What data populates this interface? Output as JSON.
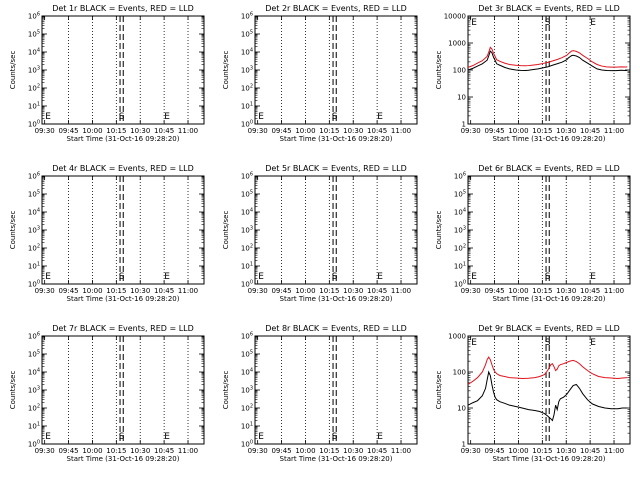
{
  "chart_data": [
    {
      "type": "line",
      "title": "Det 1r BLACK = Events, RED = LLD",
      "xlabel": "Start Time (31-Oct-16 09:28:20)",
      "ylabel": "Counts/sec",
      "xticks": [
        "09:30",
        "09:45",
        "10:00",
        "10:15",
        "10:30",
        "10:45",
        "11:00"
      ],
      "yscale": "log",
      "ylim": [
        1,
        1000000
      ],
      "yticks": [
        "10^0",
        "10^1",
        "10^2",
        "10^3",
        "10^4",
        "10^5",
        "10^6"
      ],
      "markers": {
        "E_left": "E",
        "S": "S",
        "E_right": "E"
      },
      "series": []
    },
    {
      "type": "line",
      "title": "Det 2r BLACK = Events, RED = LLD",
      "xlabel": "Start Time (31-Oct-16 09:28:20)",
      "ylabel": "Counts/sec",
      "xticks": [
        "09:30",
        "09:45",
        "10:00",
        "10:15",
        "10:30",
        "10:45",
        "11:00"
      ],
      "yscale": "log",
      "ylim": [
        1,
        1000000
      ],
      "yticks": [
        "10^0",
        "10^1",
        "10^2",
        "10^3",
        "10^4",
        "10^5",
        "10^6"
      ],
      "markers": {
        "E_left": "E",
        "S": "S",
        "E_right": "E"
      },
      "series": []
    },
    {
      "type": "line",
      "title": "Det 3r BLACK = Events, RED = LLD",
      "xlabel": "Start Time (31-Oct-16 09:28:20)",
      "ylabel": "Counts/sec",
      "xticks": [
        "09:30",
        "09:45",
        "10:00",
        "10:15",
        "10:30",
        "10:45",
        "11:00"
      ],
      "yscale": "log",
      "ylim": [
        1,
        10000
      ],
      "yticks": [
        "1",
        "10",
        "100",
        "1000",
        "10000"
      ],
      "markers": {
        "E_left": "E",
        "S": "S",
        "E_right": "E"
      },
      "series": [
        {
          "color": "#000000",
          "x": [
            0,
            3,
            6,
            9,
            12,
            13,
            14,
            15,
            16,
            17,
            18,
            20,
            23,
            26,
            30,
            33,
            36,
            38,
            40,
            44,
            47,
            50,
            53,
            56,
            59,
            62,
            63,
            64,
            65,
            66,
            68,
            70,
            72,
            75,
            78,
            81,
            84,
            87,
            90,
            93,
            96,
            99,
            100
          ],
          "y": [
            100,
            115,
            140,
            170,
            230,
            330,
            500,
            440,
            300,
            230,
            170,
            150,
            125,
            110,
            100,
            97,
            96,
            98,
            102,
            110,
            120,
            130,
            150,
            170,
            195,
            240,
            280,
            310,
            340,
            350,
            330,
            290,
            230,
            180,
            140,
            110,
            100,
            96,
            95,
            95,
            98,
            96,
            97
          ]
        },
        {
          "color": "#e0141e",
          "x": [
            0,
            3,
            6,
            9,
            12,
            13,
            14,
            15,
            16,
            17,
            18,
            20,
            23,
            26,
            30,
            33,
            36,
            38,
            40,
            44,
            47,
            50,
            53,
            56,
            59,
            62,
            63,
            64,
            65,
            66,
            68,
            70,
            72,
            75,
            78,
            81,
            84,
            87,
            90,
            93,
            96,
            99,
            100
          ],
          "y": [
            125,
            145,
            180,
            220,
            320,
            450,
            690,
            600,
            420,
            320,
            240,
            210,
            180,
            160,
            150,
            145,
            144,
            146,
            150,
            160,
            175,
            190,
            215,
            245,
            285,
            350,
            400,
            450,
            500,
            520,
            490,
            430,
            350,
            270,
            200,
            160,
            140,
            130,
            128,
            128,
            130,
            129,
            130
          ]
        }
      ]
    },
    {
      "type": "line",
      "title": "Det 4r BLACK = Events, RED = LLD",
      "xlabel": "Start Time (31-Oct-16 09:28:20)",
      "ylabel": "Counts/sec",
      "xticks": [
        "09:30",
        "09:45",
        "10:00",
        "10:15",
        "10:30",
        "10:45",
        "11:00"
      ],
      "yscale": "log",
      "ylim": [
        1,
        1000000
      ],
      "yticks": [
        "10^0",
        "10^1",
        "10^2",
        "10^3",
        "10^4",
        "10^5",
        "10^6"
      ],
      "markers": {
        "E_left": "E",
        "S": "S",
        "E_right": "E"
      },
      "series": []
    },
    {
      "type": "line",
      "title": "Det 5r BLACK = Events, RED = LLD",
      "xlabel": "Start Time (31-Oct-16 09:28:20)",
      "ylabel": "Counts/sec",
      "xticks": [
        "09:30",
        "09:45",
        "10:00",
        "10:15",
        "10:30",
        "10:45",
        "11:00"
      ],
      "yscale": "log",
      "ylim": [
        1,
        1000000
      ],
      "yticks": [
        "10^0",
        "10^1",
        "10^2",
        "10^3",
        "10^4",
        "10^5",
        "10^6"
      ],
      "markers": {
        "E_left": "E",
        "S": "S",
        "E_right": "E"
      },
      "series": []
    },
    {
      "type": "line",
      "title": "Det 6r BLACK = Events, RED = LLD",
      "xlabel": "Start Time (31-Oct-16 09:28:20)",
      "ylabel": "Counts/sec",
      "xticks": [
        "09:30",
        "09:45",
        "10:00",
        "10:15",
        "10:30",
        "10:45",
        "11:00"
      ],
      "yscale": "log",
      "ylim": [
        1,
        1000000
      ],
      "yticks": [
        "10^0",
        "10^1",
        "10^2",
        "10^3",
        "10^4",
        "10^5",
        "10^6"
      ],
      "markers": {
        "E_left": "E",
        "S": "S",
        "E_right": "E"
      },
      "series": []
    },
    {
      "type": "line",
      "title": "Det 7r BLACK = Events, RED = LLD",
      "xlabel": "Start Time (31-Oct-16 09:28:20)",
      "ylabel": "Counts/sec",
      "xticks": [
        "09:30",
        "09:45",
        "10:00",
        "10:15",
        "10:30",
        "10:45",
        "11:00"
      ],
      "yscale": "log",
      "ylim": [
        1,
        1000000
      ],
      "yticks": [
        "10^0",
        "10^1",
        "10^2",
        "10^3",
        "10^4",
        "10^5",
        "10^6"
      ],
      "markers": {
        "E_left": "E",
        "S": "S",
        "E_right": "E"
      },
      "series": []
    },
    {
      "type": "line",
      "title": "Det 8r BLACK = Events, RED = LLD",
      "xlabel": "Start Time (31-Oct-16 09:28:20)",
      "ylabel": "Counts/sec",
      "xticks": [
        "09:30",
        "09:45",
        "10:00",
        "10:15",
        "10:30",
        "10:45",
        "11:00"
      ],
      "yscale": "log",
      "ylim": [
        1,
        1000000
      ],
      "yticks": [
        "10^0",
        "10^1",
        "10^2",
        "10^3",
        "10^4",
        "10^5",
        "10^6"
      ],
      "markers": {
        "E_left": "E",
        "S": "S",
        "E_right": "E"
      },
      "series": []
    },
    {
      "type": "line",
      "title": "Det 9r BLACK = Events, RED = LLD",
      "xlabel": "Start Time (31-Oct-16 09:28:20)",
      "ylabel": "Counts/sec",
      "xticks": [
        "09:30",
        "09:45",
        "10:00",
        "10:15",
        "10:30",
        "10:45",
        "11:00"
      ],
      "yscale": "log",
      "ylim": [
        1,
        1000
      ],
      "yticks": [
        "1",
        "10",
        "100",
        "1000"
      ],
      "markers": {
        "E_left": "E",
        "S": "S",
        "E_right": "E"
      },
      "series": [
        {
          "color": "#000000",
          "x": [
            0,
            3,
            6,
            9,
            11,
            12,
            13,
            14,
            15,
            16,
            17,
            18,
            20,
            23,
            26,
            30,
            34,
            38,
            42,
            45,
            48,
            50,
            52,
            53,
            54,
            55,
            56,
            57,
            58,
            60,
            62,
            64,
            66,
            68,
            70,
            72,
            75,
            78,
            82,
            86,
            90,
            94,
            97,
            100
          ],
          "y": [
            12,
            14,
            16,
            22,
            35,
            60,
            100,
            80,
            45,
            28,
            20,
            17,
            15,
            13.5,
            12,
            11,
            10,
            9,
            8.5,
            8,
            7,
            6,
            5,
            4.5,
            6.5,
            12,
            9,
            15,
            18,
            20,
            24,
            32,
            42,
            45,
            35,
            25,
            17,
            13,
            11,
            10,
            9.5,
            9.5,
            10,
            10
          ]
        },
        {
          "color": "#e0141e",
          "x": [
            0,
            3,
            6,
            9,
            11,
            12,
            13,
            14,
            15,
            16,
            17,
            18,
            20,
            23,
            26,
            30,
            34,
            38,
            42,
            45,
            48,
            50,
            52,
            53,
            54,
            55,
            56,
            57,
            58,
            60,
            62,
            64,
            66,
            68,
            70,
            72,
            75,
            78,
            82,
            86,
            90,
            94,
            97,
            100
          ],
          "y": [
            45,
            55,
            70,
            100,
            160,
            220,
            260,
            220,
            160,
            120,
            100,
            90,
            80,
            75,
            70,
            68,
            66,
            67,
            70,
            75,
            85,
            110,
            160,
            170,
            140,
            110,
            120,
            150,
            160,
            170,
            185,
            200,
            210,
            195,
            170,
            140,
            110,
            90,
            75,
            70,
            68,
            66,
            68,
            70
          ]
        }
      ]
    }
  ]
}
